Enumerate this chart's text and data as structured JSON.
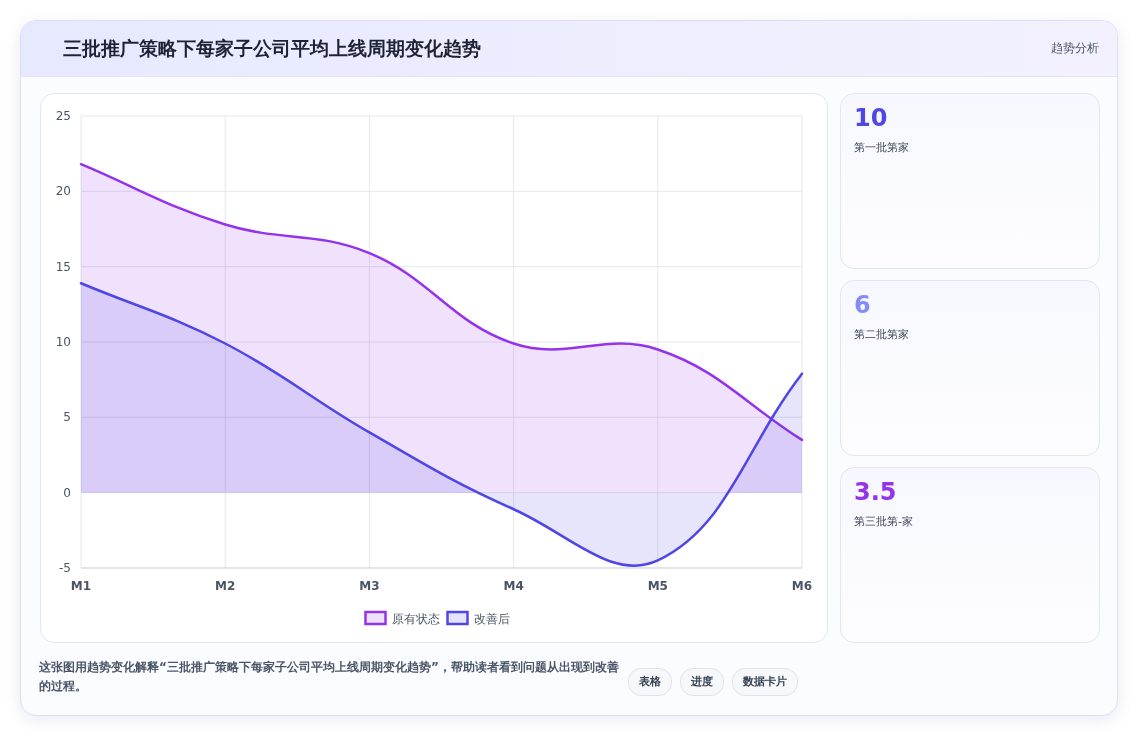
{
  "chart_data": [
    {
      "type": "area",
      "title": "三批推广策略下每家子公司平均上线周期变化趋势",
      "categories": [
        "M1",
        "M2",
        "M3",
        "M4",
        "M5",
        "M6"
      ],
      "series": [
        {
          "name": "原有状态",
          "color": "#9333ea",
          "values": [
            21.8,
            17.8,
            15.9,
            9.9,
            9.5,
            3.5
          ]
        },
        {
          "name": "改善后",
          "color": "#4f46e5",
          "values": [
            13.9,
            9.9,
            4.0,
            -1.1,
            -4.5,
            7.9
          ]
        }
      ],
      "ylim": [
        -5,
        25
      ],
      "yticks": [
        -5,
        0,
        5,
        10,
        15,
        20,
        25
      ],
      "grid": true,
      "legend": "bottom",
      "annotations": [
        "这张图用趋势变化解释“三批推广策略下每家子公司平均上线周期变化趋势”，帮助读者看到问题从出现到改善的过程。",
        "表格",
        "进度",
        "数据卡片"
      ]
    },
    {
      "type": "other",
      "title": "趋势分析",
      "annotations": [
        "10",
        "第一批第家",
        "6",
        "第二批第家",
        "3.5",
        "第三批第-家"
      ],
      "colors": [
        "#4f46e5",
        "#818cf8",
        "#9333ea"
      ]
    }
  ]
}
